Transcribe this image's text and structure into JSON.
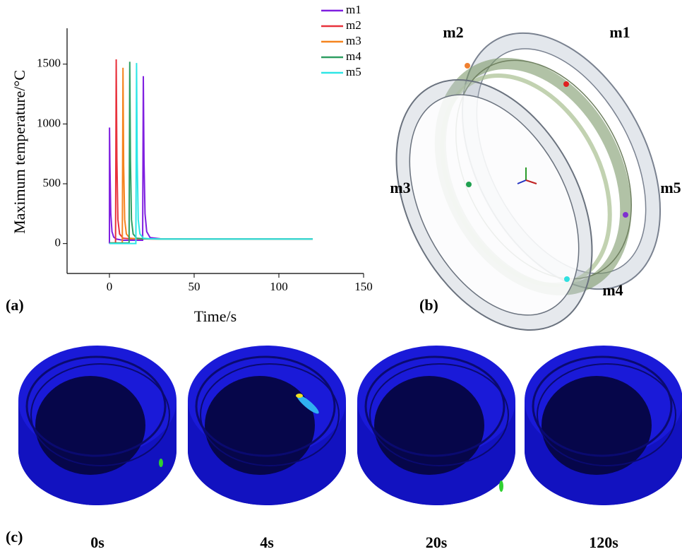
{
  "chart_data": {
    "type": "line",
    "y_label": "Maximum temperature/°C",
    "x_label": "Time/s",
    "xlim": [
      -25,
      150
    ],
    "ylim": [
      -250,
      1800
    ],
    "xticks": [
      0,
      50,
      100,
      150
    ],
    "yticks": [
      0,
      500,
      1000,
      1500
    ],
    "legend": "top-right",
    "series": [
      {
        "name": "m1",
        "color": "#7f1fe0",
        "x": [
          0,
          0.05,
          0.3,
          0.8,
          1.5,
          2.5,
          4,
          8,
          19.6,
          20,
          20.4,
          21,
          22,
          24,
          30,
          60,
          120
        ],
        "values": [
          0,
          970,
          650,
          250,
          100,
          55,
          38,
          28,
          28,
          1400,
          700,
          250,
          100,
          50,
          40,
          38,
          38
        ]
      },
      {
        "name": "m2",
        "color": "#e8323c",
        "x": [
          0,
          3.6,
          4,
          4.4,
          5,
          6,
          8,
          12,
          30,
          120
        ],
        "values": [
          5,
          5,
          1540,
          700,
          200,
          80,
          45,
          40,
          38,
          38
        ]
      },
      {
        "name": "m3",
        "color": "#f5841f",
        "x": [
          0,
          7.6,
          8,
          8.4,
          9,
          10,
          12,
          16,
          30,
          120
        ],
        "values": [
          5,
          5,
          1470,
          650,
          200,
          80,
          45,
          40,
          38,
          38
        ]
      },
      {
        "name": "m4",
        "color": "#2e9e62",
        "x": [
          0,
          11.6,
          12,
          12.4,
          13,
          14,
          16,
          20,
          30,
          120
        ],
        "values": [
          5,
          5,
          1520,
          700,
          200,
          80,
          45,
          40,
          38,
          38
        ]
      },
      {
        "name": "m5",
        "color": "#2ee6e6",
        "x": [
          0,
          15.6,
          16,
          16.4,
          17,
          18,
          20,
          24,
          30,
          120
        ],
        "values": [
          0,
          0,
          1510,
          700,
          200,
          80,
          45,
          40,
          38,
          38
        ]
      }
    ]
  },
  "panels": {
    "a": "(a)",
    "b": "(b)",
    "c": "(c)"
  },
  "diagram": {
    "labels": [
      "m1",
      "m2",
      "m3",
      "m4",
      "m5"
    ]
  },
  "snapshots": {
    "labels": [
      "0s",
      "4s",
      "20s",
      "120s"
    ]
  }
}
